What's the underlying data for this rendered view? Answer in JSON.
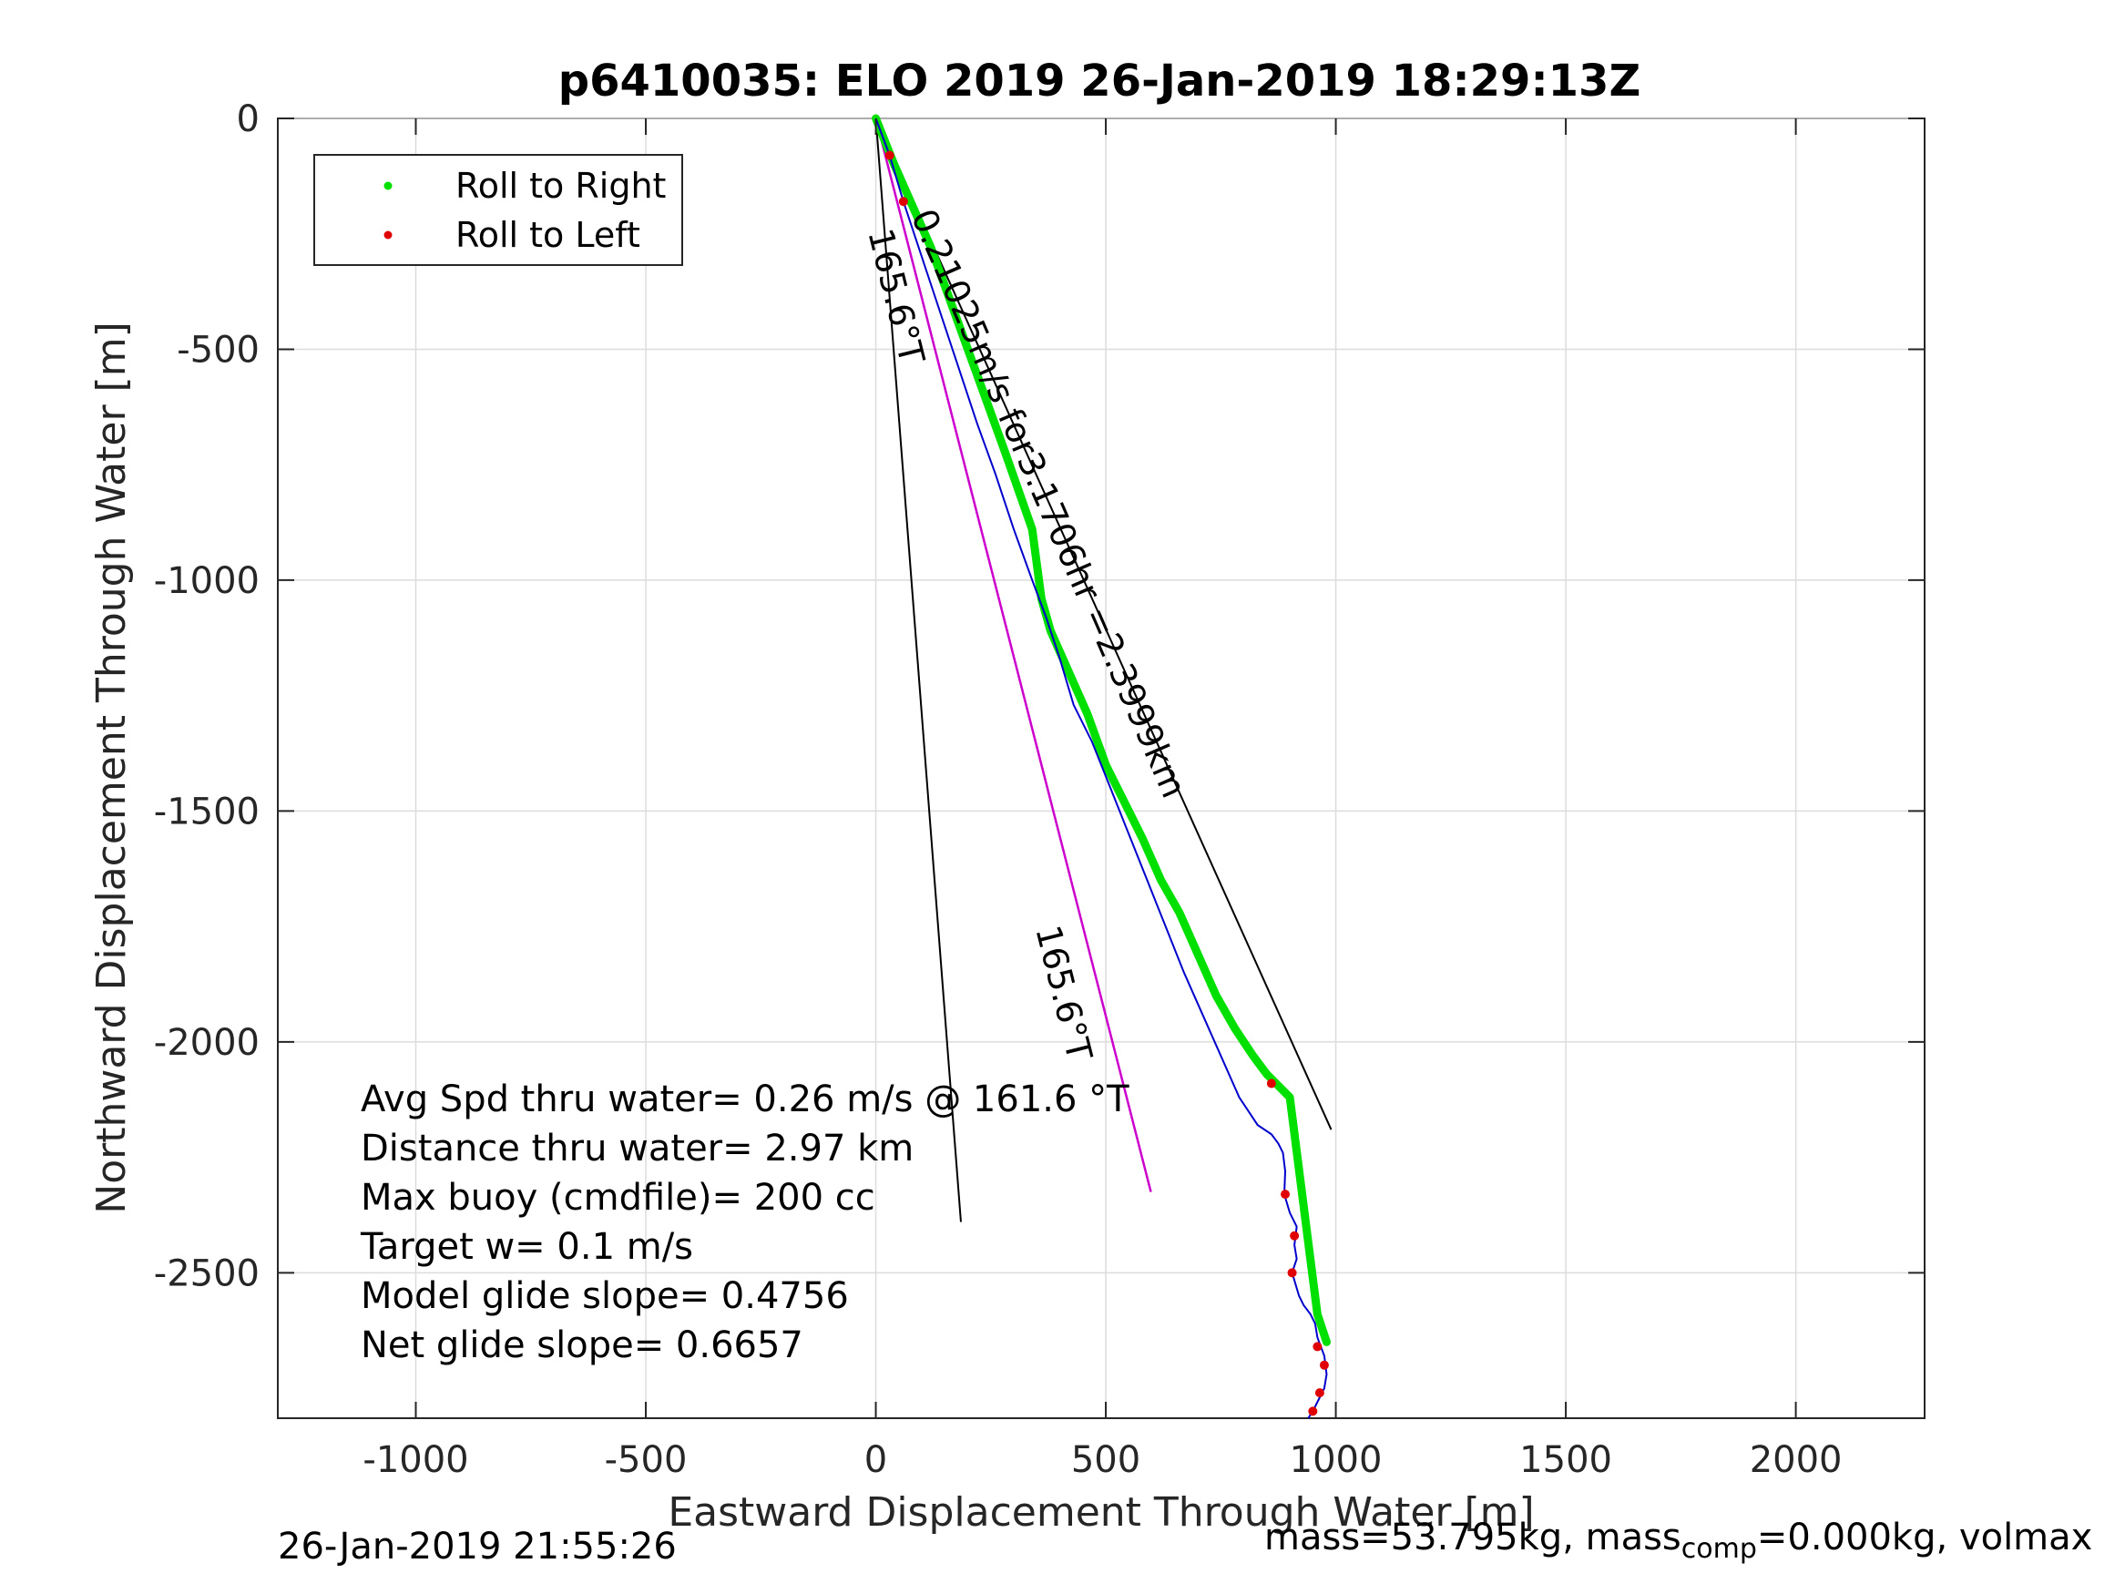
{
  "chart_data": {
    "type": "line",
    "title": "p6410035: ELO 2019 26-Jan-2019 18:29:13Z",
    "xlabel": "Eastward Displacement Through Water [m]",
    "ylabel": "Northward Displacement Through Water [m]",
    "xlim": [
      -1300,
      2280
    ],
    "ylim": [
      -2815,
      0
    ],
    "grid": true,
    "xticks": [
      -1000,
      -500,
      0,
      500,
      1000,
      1500,
      2000
    ],
    "xtick_labels": [
      "-1000",
      "-500",
      "0",
      "500",
      "1000",
      "1500",
      "2000"
    ],
    "yticks": [
      0,
      -500,
      -1000,
      -1500,
      -2000,
      -2500
    ],
    "ytick_labels": [
      "0",
      "-500",
      "-1000",
      "-1500",
      "-2000",
      "-2500"
    ],
    "legend": {
      "position": "top-left",
      "entries": [
        {
          "label": "Roll to Right",
          "color": "#00e000"
        },
        {
          "label": "Roll to Left",
          "color": "#e00000"
        }
      ]
    },
    "track": {
      "color": "#0000cc",
      "x": [
        0,
        30,
        60,
        100,
        140,
        180,
        220,
        260,
        300,
        340,
        370,
        400,
        430,
        470,
        510,
        550,
        590,
        630,
        670,
        710,
        750,
        790,
        830,
        860,
        875,
        885,
        890,
        888,
        900,
        915,
        910,
        915,
        905,
        920,
        930,
        945,
        955,
        960,
        975,
        980,
        975,
        960,
        950,
        940
      ],
      "y": [
        0,
        -80,
        -180,
        -300,
        -420,
        -540,
        -660,
        -770,
        -890,
        -1000,
        -1080,
        -1170,
        -1270,
        -1350,
        -1450,
        -1550,
        -1650,
        -1750,
        -1850,
        -1940,
        -2030,
        -2120,
        -2180,
        -2200,
        -2220,
        -2240,
        -2280,
        -2330,
        -2370,
        -2400,
        -2440,
        -2470,
        -2500,
        -2550,
        -2570,
        -2590,
        -2610,
        -2640,
        -2680,
        -2720,
        -2750,
        -2780,
        -2800,
        -2815
      ]
    },
    "roll_right_x": [
      0,
      40,
      120,
      200,
      280,
      340,
      360,
      380,
      420,
      460,
      500,
      540,
      580,
      620,
      660,
      700,
      740,
      780,
      820,
      850,
      900,
      960,
      970,
      980
    ],
    "roll_right_y": [
      0,
      -100,
      -280,
      -500,
      -720,
      -890,
      -1040,
      -1110,
      -1200,
      -1290,
      -1400,
      -1480,
      -1560,
      -1650,
      -1720,
      -1810,
      -1900,
      -1970,
      -2030,
      -2070,
      -2120,
      -2590,
      -2620,
      -2650
    ],
    "roll_left_x": [
      30,
      60,
      860,
      890,
      910,
      905,
      960,
      975,
      965,
      950
    ],
    "roll_left_y": [
      -80,
      -180,
      -2090,
      -2330,
      -2420,
      -2500,
      -2660,
      -2700,
      -2760,
      -2800
    ],
    "reference_lines": [
      {
        "x": [
          0,
          185
        ],
        "y": [
          0,
          -2390
        ],
        "color": "#000000",
        "label": "165.6°T"
      },
      {
        "x": [
          0,
          990
        ],
        "y": [
          0,
          -2190
        ],
        "color": "#000000"
      },
      {
        "x": [
          0,
          598
        ],
        "y": [
          0,
          -2325
        ],
        "color": "#cc00cc",
        "label": "165.6°T"
      }
    ],
    "annotations": [
      "0.21025m/s for3.1706hr =2.3999km",
      "165.6°T",
      "165.6°T"
    ],
    "stats": [
      "Avg Spd thru water=  0.26 m/s @ 161.6 °T",
      "Distance thru water=  2.97 km",
      "Max buoy (cmdfile)= 200 cc",
      "Target w= 0.1 m/s",
      "Model glide slope= 0.4756",
      "Net glide slope= 0.6657"
    ]
  },
  "footer": {
    "timestamp": "26-Jan-2019 21:55:26",
    "mass_text": "mass=53.795kg, mass",
    "mass_sub": "comp",
    "mass_tail": "=0.000kg, volmax"
  }
}
